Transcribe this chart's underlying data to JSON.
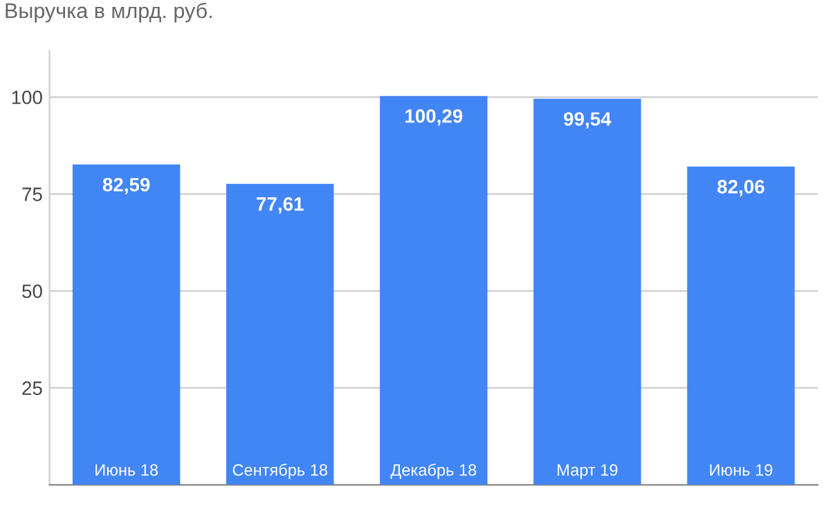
{
  "chart_data": {
    "type": "bar",
    "title": "Выручка в млрд. руб.",
    "categories": [
      "Июнь 18",
      "Сентябрь 18",
      "Декабрь 18",
      "Март 19",
      "Июнь 19"
    ],
    "values": [
      82.59,
      77.61,
      100.29,
      99.54,
      82.06
    ],
    "value_labels": [
      "82,59",
      "77,61",
      "100,29",
      "99,54",
      "82,06"
    ],
    "color": "#4285f4",
    "ylim": [
      0,
      112
    ],
    "yticks": [
      25,
      50,
      75,
      100
    ],
    "grid": "y"
  }
}
